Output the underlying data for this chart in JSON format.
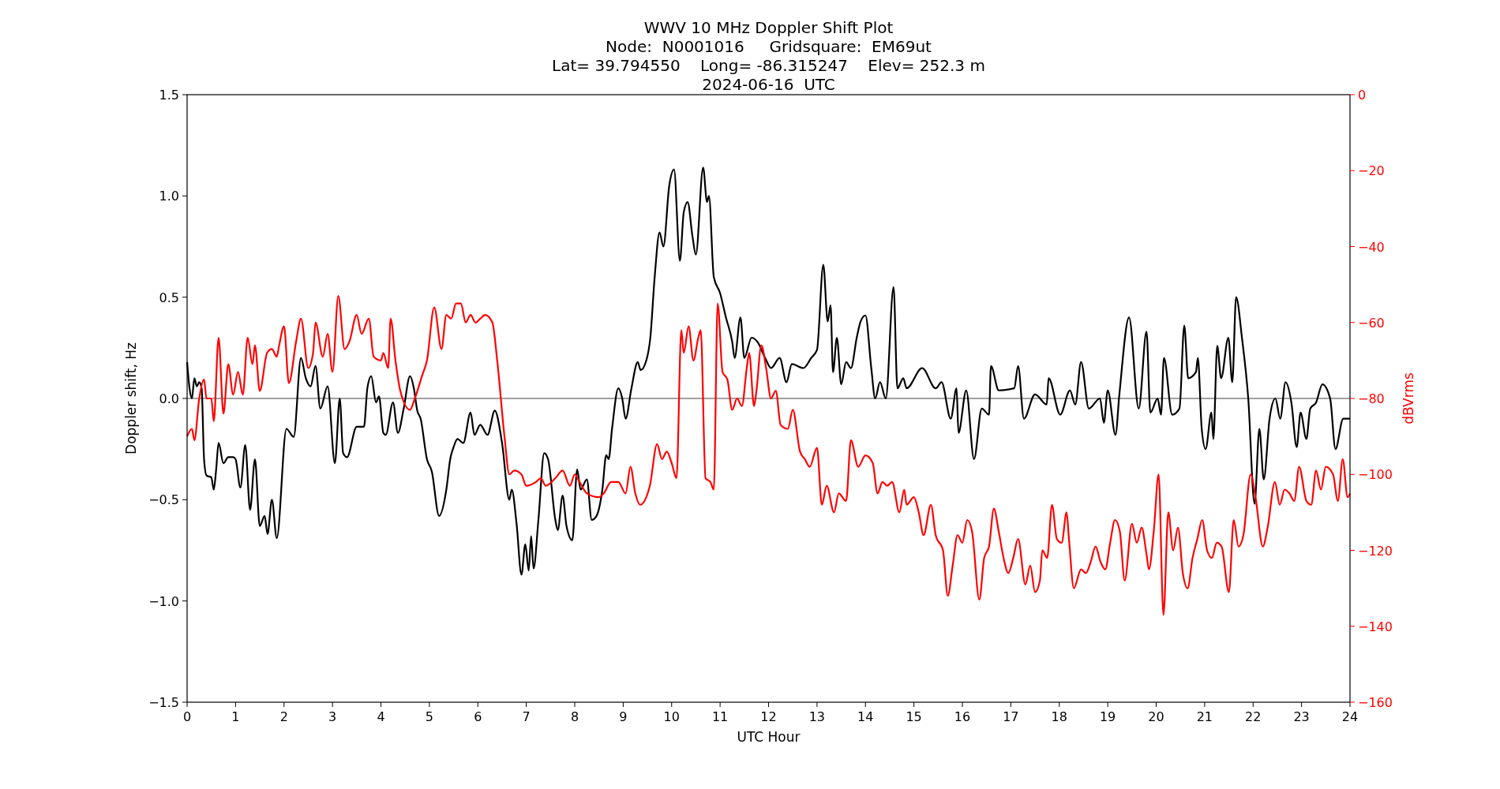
{
  "chart_data": {
    "type": "line",
    "title": "WWV 10 MHz Doppler Shift Plot",
    "subtitle": "Node:  N0001016     Gridsquare:  EM69ut\nLat= 39.794550    Long= -86.315247    Elev= 252.3 m\n2024-06-16  UTC",
    "xlabel": "UTC Hour",
    "ylabel": "Doppler shift, Hz",
    "y2label": "dBVrms",
    "xlim": [
      0,
      24
    ],
    "xticks": [
      0,
      1,
      2,
      3,
      4,
      5,
      6,
      7,
      8,
      9,
      10,
      11,
      12,
      13,
      14,
      15,
      16,
      17,
      18,
      19,
      20,
      21,
      22,
      23,
      24
    ],
    "ylim": [
      -1.5,
      1.5
    ],
    "yticks": [
      {
        "value": -1.5,
        "label": "−1.5"
      },
      {
        "value": -1,
        "label": "−1.0"
      },
      {
        "value": -0.5,
        "label": "−0.5"
      },
      {
        "value": 0,
        "label": "0.0"
      },
      {
        "value": 0.5,
        "label": "0.5"
      },
      {
        "value": 1,
        "label": "1.0"
      },
      {
        "value": 1.5,
        "label": "1.5"
      }
    ],
    "y2lim": [
      -160,
      0
    ],
    "y2ticks": [
      {
        "value": -160,
        "label": "−160"
      },
      {
        "value": -140,
        "label": "−140"
      },
      {
        "value": -120,
        "label": "−120"
      },
      {
        "value": -100,
        "label": "−100"
      },
      {
        "value": -80,
        "label": "−80"
      },
      {
        "value": -60,
        "label": "−60"
      },
      {
        "value": -40,
        "label": "−40"
      },
      {
        "value": -20,
        "label": "−20"
      },
      0
    ],
    "ref_lines": [
      {
        "axis": "y",
        "value": 0,
        "color": "#808080"
      }
    ],
    "series": [
      {
        "color": "#000000",
        "x": [
          0,
          0.05,
          0.1,
          0.15,
          0.2,
          0.25,
          0.3,
          0.35,
          0.4,
          0.5,
          0.55,
          0.6,
          0.65,
          0.75,
          0.85,
          0.95,
          1.0,
          1.1,
          1.2,
          1.3,
          1.4,
          1.5,
          1.6,
          1.66,
          1.75,
          1.85,
          2.05,
          2.2,
          2.35,
          2.45,
          2.55,
          2.65,
          2.75,
          2.9,
          3.05,
          3.15,
          3.22,
          3.3,
          3.5,
          3.65,
          3.72,
          3.8,
          3.9,
          3.96,
          4.05,
          4.1,
          4.25,
          4.35,
          4.47,
          4.6,
          4.68,
          4.75,
          4.82,
          4.95,
          5.05,
          5.2,
          5.35,
          5.43,
          5.5,
          5.58,
          5.7,
          5.85,
          5.93,
          6.05,
          6.2,
          6.35,
          6.5,
          6.65,
          6.7,
          6.8,
          6.9,
          6.98,
          7.05,
          7.1,
          7.15,
          7.25,
          7.37,
          7.45,
          7.6,
          7.65,
          7.75,
          7.83,
          7.95,
          8.05,
          8.12,
          8.25,
          8.35,
          8.45,
          8.57,
          8.65,
          8.7,
          8.77,
          8.9,
          8.98,
          9.05,
          9.17,
          9.3,
          9.36,
          9.48,
          9.56,
          9.65,
          9.75,
          9.83,
          9.95,
          10.05,
          10.17,
          10.25,
          10.33,
          10.43,
          10.5,
          10.65,
          10.73,
          10.77,
          10.87,
          11.0,
          11.12,
          11.25,
          11.3,
          11.42,
          11.5,
          11.65,
          11.77,
          11.93,
          12.05,
          12.23,
          12.37,
          12.48,
          12.72,
          12.88,
          13.0,
          13.13,
          13.22,
          13.28,
          13.33,
          13.41,
          13.5,
          13.6,
          13.7,
          13.82,
          13.9,
          14.0,
          14.12,
          14.2,
          14.3,
          14.42,
          14.58,
          14.66,
          14.78,
          14.85,
          15.17,
          15.45,
          15.57,
          15.76,
          15.88,
          15.92,
          16.08,
          16.24,
          16.4,
          16.55,
          16.59,
          16.75,
          17.07,
          17.15,
          17.27,
          17.5,
          17.74,
          17.78,
          18.02,
          18.22,
          18.33,
          18.45,
          18.61,
          18.84,
          18.92,
          19.0,
          19.16,
          19.24,
          19.44,
          19.64,
          19.8,
          19.88,
          20.03,
          20.1,
          20.16,
          20.33,
          20.48,
          20.58,
          20.66,
          20.82,
          20.86,
          20.94,
          21.02,
          21.14,
          21.18,
          21.26,
          21.34,
          21.49,
          21.57,
          21.65,
          21.77,
          21.9,
          22.03,
          22.13,
          22.22,
          22.34,
          22.46,
          22.56,
          22.67,
          22.79,
          22.9,
          22.98,
          23.1,
          23.18,
          23.3,
          23.43,
          23.59,
          23.7,
          23.86,
          24
        ],
        "values": [
          0.18,
          0.05,
          0.0,
          0.1,
          0.06,
          0.08,
          0.05,
          -0.3,
          -0.38,
          -0.39,
          -0.45,
          -0.35,
          -0.22,
          -0.32,
          -0.29,
          -0.29,
          -0.3,
          -0.44,
          -0.23,
          -0.55,
          -0.3,
          -0.63,
          -0.58,
          -0.67,
          -0.5,
          -0.69,
          -0.15,
          -0.19,
          0.2,
          0.1,
          0.06,
          0.16,
          -0.05,
          0.06,
          -0.32,
          0.0,
          -0.27,
          -0.29,
          -0.14,
          -0.14,
          0.05,
          0.11,
          -0.02,
          0.01,
          -0.17,
          -0.18,
          -0.02,
          -0.17,
          -0.05,
          0.11,
          0.05,
          -0.06,
          -0.1,
          -0.3,
          -0.36,
          -0.58,
          -0.45,
          -0.3,
          -0.24,
          -0.2,
          -0.22,
          -0.07,
          -0.18,
          -0.13,
          -0.18,
          -0.06,
          -0.22,
          -0.5,
          -0.45,
          -0.62,
          -0.87,
          -0.72,
          -0.85,
          -0.68,
          -0.84,
          -0.6,
          -0.27,
          -0.3,
          -0.6,
          -0.65,
          -0.48,
          -0.63,
          -0.7,
          -0.35,
          -0.45,
          -0.4,
          -0.6,
          -0.58,
          -0.45,
          -0.28,
          -0.3,
          -0.15,
          0.05,
          0.0,
          -0.1,
          0.05,
          0.18,
          0.14,
          0.19,
          0.3,
          0.6,
          0.82,
          0.75,
          1.05,
          1.13,
          0.68,
          0.92,
          0.97,
          0.8,
          0.71,
          1.14,
          0.97,
          1.0,
          0.6,
          0.52,
          0.4,
          0.28,
          0.2,
          0.4,
          0.2,
          0.3,
          0.28,
          0.2,
          0.15,
          0.2,
          0.08,
          0.17,
          0.15,
          0.2,
          0.24,
          0.66,
          0.38,
          0.46,
          0.13,
          0.3,
          0.07,
          0.18,
          0.15,
          0.3,
          0.38,
          0.41,
          0.15,
          0.0,
          0.08,
          0.0,
          0.55,
          0.05,
          0.1,
          0.05,
          0.15,
          0.05,
          0.08,
          -0.1,
          0.05,
          -0.17,
          0.04,
          -0.3,
          -0.05,
          -0.08,
          0.16,
          0.04,
          0.05,
          0.16,
          -0.1,
          0.02,
          -0.03,
          0.1,
          -0.08,
          0.04,
          -0.03,
          0.18,
          -0.05,
          0.0,
          -0.12,
          0.04,
          -0.18,
          0.02,
          0.4,
          -0.05,
          0.33,
          -0.07,
          0.0,
          -0.08,
          0.2,
          -0.08,
          -0.05,
          0.36,
          0.1,
          0.13,
          0.2,
          -0.15,
          -0.25,
          -0.07,
          -0.2,
          0.26,
          0.1,
          0.3,
          0.08,
          0.5,
          0.3,
          0.0,
          -0.52,
          -0.15,
          -0.4,
          -0.1,
          0.0,
          -0.1,
          0.08,
          -0.02,
          -0.24,
          -0.07,
          -0.2,
          -0.05,
          -0.02,
          0.07,
          0.0,
          -0.25,
          -0.1,
          -0.1
        ]
      },
      {
        "color": "#ff0000",
        "axis": "y2",
        "x": [
          0,
          0.1,
          0.15,
          0.25,
          0.35,
          0.4,
          0.5,
          0.55,
          0.65,
          0.75,
          0.85,
          0.95,
          1.05,
          1.15,
          1.25,
          1.35,
          1.4,
          1.5,
          1.65,
          1.75,
          1.85,
          1.9,
          2.0,
          2.1,
          2.25,
          2.35,
          2.5,
          2.6,
          2.65,
          2.8,
          2.9,
          3.0,
          3.12,
          3.25,
          3.35,
          3.5,
          3.6,
          3.75,
          3.85,
          4.0,
          4.05,
          4.15,
          4.2,
          4.3,
          4.4,
          4.6,
          4.7,
          4.85,
          4.95,
          5.1,
          5.25,
          5.35,
          5.45,
          5.55,
          5.65,
          5.75,
          5.85,
          5.95,
          6.05,
          6.15,
          6.3,
          6.4,
          6.55,
          6.65,
          6.75,
          6.9,
          7.0,
          7.2,
          7.3,
          7.4,
          7.6,
          7.75,
          7.9,
          8.0,
          8.1,
          8.25,
          8.5,
          8.6,
          8.75,
          8.9,
          9.05,
          9.15,
          9.25,
          9.35,
          9.55,
          9.7,
          9.8,
          9.9,
          10.0,
          10.1,
          10.2,
          10.25,
          10.35,
          10.45,
          10.55,
          10.6,
          10.7,
          10.8,
          10.87,
          10.95,
          11.05,
          11.15,
          11.25,
          11.35,
          11.45,
          11.55,
          11.6,
          11.7,
          11.75,
          11.85,
          11.95,
          12.05,
          12.15,
          12.25,
          12.4,
          12.5,
          12.65,
          12.75,
          12.85,
          13.0,
          13.1,
          13.2,
          13.35,
          13.45,
          13.6,
          13.7,
          13.85,
          14.0,
          14.15,
          14.25,
          14.35,
          14.45,
          14.55,
          14.7,
          14.8,
          14.85,
          15.0,
          15.1,
          15.2,
          15.35,
          15.45,
          15.6,
          15.7,
          15.8,
          15.9,
          16.0,
          16.1,
          16.2,
          16.35,
          16.45,
          16.55,
          16.65,
          16.75,
          16.85,
          16.95,
          17.05,
          17.15,
          17.3,
          17.4,
          17.5,
          17.6,
          17.65,
          17.75,
          17.85,
          17.95,
          18.05,
          18.15,
          18.2,
          18.3,
          18.45,
          18.55,
          18.65,
          18.75,
          18.85,
          18.95,
          19.05,
          19.15,
          19.25,
          19.35,
          19.5,
          19.6,
          19.7,
          19.8,
          19.85,
          19.95,
          20.05,
          20.15,
          20.25,
          20.35,
          20.45,
          20.55,
          20.65,
          20.75,
          20.85,
          20.95,
          21.05,
          21.15,
          21.25,
          21.35,
          21.5,
          21.6,
          21.7,
          21.8,
          21.95,
          22.05,
          22.2,
          22.3,
          22.45,
          22.55,
          22.65,
          22.75,
          22.85,
          22.95,
          23.1,
          23.2,
          23.3,
          23.4,
          23.5,
          23.65,
          23.75,
          23.85,
          23.95,
          24
        ],
        "values": [
          -90,
          -88,
          -91,
          -80,
          -75,
          -80,
          -80,
          -86,
          -64,
          -84,
          -71,
          -79,
          -73,
          -79,
          -64,
          -71,
          -66,
          -78,
          -68,
          -67,
          -69,
          -66,
          -61,
          -76,
          -65,
          -59,
          -72,
          -68,
          -60,
          -69,
          -63,
          -73,
          -53,
          -67,
          -65,
          -58,
          -63,
          -59,
          -69,
          -70,
          -68,
          -72,
          -59,
          -70,
          -78,
          -83,
          -80,
          -74,
          -70,
          -56,
          -67,
          -58,
          -59,
          -55,
          -55,
          -60,
          -58,
          -60,
          -59,
          -58,
          -60,
          -70,
          -90,
          -100,
          -99,
          -100,
          -103,
          -102,
          -101,
          -103,
          -101,
          -99,
          -103,
          -100,
          -102,
          -105,
          -106,
          -105,
          -102,
          -102,
          -105,
          -98,
          -105,
          -108,
          -103,
          -92,
          -96,
          -94,
          -97,
          -101,
          -62,
          -68,
          -61,
          -70,
          -64,
          -62,
          -101,
          -102,
          -104,
          -55,
          -73,
          -75,
          -83,
          -80,
          -82,
          -72,
          -68,
          -82,
          -78,
          -66,
          -72,
          -80,
          -78,
          -87,
          -88,
          -83,
          -94,
          -96,
          -98,
          -93,
          -108,
          -103,
          -110,
          -105,
          -107,
          -91,
          -98,
          -95,
          -97,
          -105,
          -102,
          -103,
          -102,
          -110,
          -104,
          -108,
          -106,
          -110,
          -116,
          -108,
          -116,
          -120,
          -132,
          -124,
          -116,
          -118,
          -112,
          -115,
          -133,
          -122,
          -119,
          -109,
          -115,
          -122,
          -126,
          -122,
          -117,
          -129,
          -124,
          -131,
          -128,
          -120,
          -122,
          -108,
          -117,
          -118,
          -110,
          -117,
          -130,
          -125,
          -126,
          -123,
          -119,
          -123,
          -125,
          -118,
          -112,
          -115,
          -128,
          -113,
          -118,
          -114,
          -121,
          -125,
          -115,
          -100,
          -137,
          -110,
          -120,
          -114,
          -126,
          -130,
          -122,
          -117,
          -112,
          -120,
          -122,
          -118,
          -119,
          -131,
          -112,
          -119,
          -116,
          -100,
          -106,
          -119,
          -114,
          -102,
          -108,
          -104,
          -105,
          -107,
          -98,
          -107,
          -108,
          -99,
          -104,
          -98,
          -100,
          -107,
          -96,
          -106,
          -105
        ]
      }
    ]
  }
}
